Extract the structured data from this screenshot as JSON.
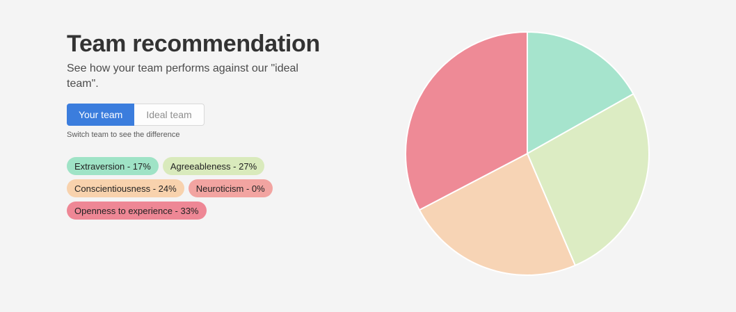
{
  "page": {
    "title": "Team recommendation",
    "subtitle": "See how your team performs against our \"ideal team\".",
    "tabs": [
      {
        "label": "Your team",
        "active": true
      },
      {
        "label": "Ideal team",
        "active": false
      }
    ],
    "helper_text": "Switch team to see the difference",
    "badges": [
      {
        "label": "Extraversion - 17%",
        "bg": "#9fe3c6"
      },
      {
        "label": "Agreeableness - 27%",
        "bg": "#d9eabc"
      },
      {
        "label": "Conscientiousness - 24%",
        "bg": "#f8d2ad"
      },
      {
        "label": "Neuroticism - 0%",
        "bg": "#f2a4a1"
      },
      {
        "label": "Openness to experience - 33%",
        "bg": "#ee8795"
      }
    ]
  },
  "colors": {
    "background": "#f4f4f4",
    "title_text": "#333333",
    "subtitle_text": "#4b4b4b",
    "accent_blue": "#3b7ddd",
    "tab_inactive_text": "#8e8e8e",
    "tab_inactive_border": "#d9d9d9",
    "badge_text": "#222222"
  },
  "chart_data": {
    "type": "pie",
    "title": "",
    "categories": [
      "Extraversion",
      "Agreeableness",
      "Conscientiousness",
      "Neuroticism",
      "Openness to experience"
    ],
    "values": [
      17,
      27,
      24,
      0,
      33
    ],
    "unit": "%",
    "colors": [
      "#a6e4cd",
      "#dcecc3",
      "#f7d4b5",
      "#f2a4a1",
      "#ee8a96"
    ],
    "start_angle_deg": -90,
    "direction": "clockwise",
    "border_color": "#ffffff",
    "border_width": 2,
    "legend_position": "none",
    "labels_shown_as": "badges on left panel"
  }
}
